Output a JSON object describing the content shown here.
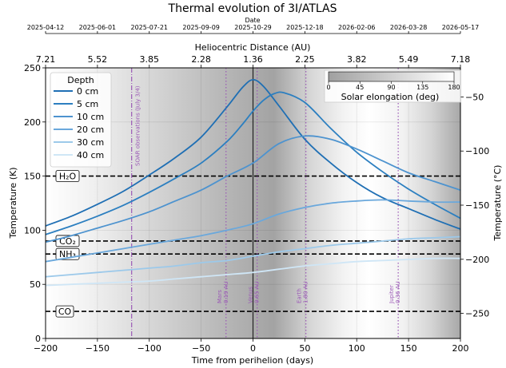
{
  "chart_data": {
    "type": "line",
    "title": "Thermal evolution of 3I/ATLAS",
    "xlabel": "Time from perihelion (days)",
    "ylabel": "Temperature (K)",
    "ylabel_right": "Temperature (°C)",
    "xlim": [
      -200,
      200
    ],
    "ylim": [
      0,
      250
    ],
    "x_ticks": [
      "−200",
      "−150",
      "−100",
      "−50",
      "0",
      "50",
      "100",
      "150",
      "200"
    ],
    "y_ticks": [
      "0",
      "50",
      "100",
      "150",
      "200",
      "250"
    ],
    "y_ticks_right": [
      "−250",
      "−200",
      "−150",
      "−100",
      "−50"
    ],
    "top_date_axis": {
      "label": "Date",
      "ticks": [
        "2025-04-12",
        "2025-06-01",
        "2025-07-21",
        "2025-09-09",
        "2025-10-29",
        "2025-12-18",
        "2026-02-06",
        "2026-03-28",
        "2026-05-17"
      ]
    },
    "top_distance_axis": {
      "label": "Heliocentric Distance (AU)",
      "ticks": [
        "7.21",
        "5.52",
        "3.85",
        "2.28",
        "1.36",
        "2.25",
        "3.82",
        "5.49",
        "7.18"
      ]
    },
    "legend": {
      "title": "Depth",
      "position": "top-left"
    },
    "series": [
      {
        "name": "0 cm",
        "color": "#1f6fb4",
        "x": [
          -200,
          -175,
          -150,
          -125,
          -100,
          -75,
          -50,
          -25,
          -10,
          0,
          10,
          25,
          50,
          75,
          100,
          125,
          150,
          175,
          200
        ],
        "y": [
          104,
          113,
          124,
          136,
          151,
          167,
          186,
          214,
          232,
          239,
          233,
          215,
          184,
          162,
          144,
          130,
          120,
          110,
          101
        ]
      },
      {
        "name": "5 cm",
        "color": "#2c7fc0",
        "x": [
          -200,
          -175,
          -150,
          -125,
          -100,
          -75,
          -50,
          -25,
          -10,
          0,
          10,
          20,
          30,
          50,
          75,
          100,
          125,
          150,
          175,
          200
        ],
        "y": [
          96,
          104,
          113,
          123,
          135,
          148,
          162,
          182,
          198,
          210,
          220,
          226,
          227,
          218,
          194,
          172,
          154,
          138,
          124,
          111
        ]
      },
      {
        "name": "10 cm",
        "color": "#4d93cf",
        "x": [
          -200,
          -175,
          -150,
          -125,
          -100,
          -75,
          -50,
          -25,
          0,
          25,
          50,
          75,
          100,
          125,
          150,
          175,
          200
        ],
        "y": [
          89,
          95,
          102,
          109,
          117,
          127,
          137,
          150,
          162,
          180,
          187,
          184,
          175,
          164,
          153,
          145,
          137
        ]
      },
      {
        "name": "20 cm",
        "color": "#6aa8dc",
        "x": [
          -200,
          -175,
          -150,
          -125,
          -100,
          -75,
          -50,
          -25,
          0,
          25,
          50,
          75,
          100,
          125,
          150,
          175,
          200
        ],
        "y": [
          71,
          75,
          79,
          83,
          87,
          91,
          95,
          100,
          106,
          115,
          121,
          125,
          127,
          128,
          127,
          126,
          126
        ]
      },
      {
        "name": "30 cm",
        "color": "#9cc9ea",
        "x": [
          -200,
          -175,
          -150,
          -125,
          -100,
          -75,
          -50,
          -25,
          0,
          25,
          50,
          75,
          100,
          125,
          150,
          175,
          200
        ],
        "y": [
          57,
          59,
          61,
          63,
          65,
          67,
          70,
          72,
          76,
          80,
          83,
          86,
          88,
          90,
          92,
          93,
          94
        ]
      },
      {
        "name": "40 cm",
        "color": "#cfe6f6",
        "x": [
          -200,
          -175,
          -150,
          -125,
          -100,
          -75,
          -50,
          -25,
          0,
          25,
          50,
          75,
          100,
          125,
          150,
          175,
          200
        ],
        "y": [
          49,
          50,
          51,
          52,
          53,
          55,
          57,
          59,
          61,
          64,
          67,
          69,
          71,
          72,
          73,
          74,
          74
        ]
      }
    ],
    "thresholds": [
      {
        "label": "H₂O",
        "y": 150
      },
      {
        "label": "CO₂",
        "y": 90
      },
      {
        "label": "NH₃",
        "y": 78
      },
      {
        "label": "CO",
        "y": 25
      }
    ],
    "events": [
      {
        "x": -117,
        "label": "SOAR observations (July 3/4)",
        "style": "dashdot"
      },
      {
        "x": -26,
        "label": "Mars",
        "sublabel": "0.19 AU",
        "style": "dotted"
      },
      {
        "x": 4,
        "label": "Venus",
        "sublabel": "0.65 AU",
        "style": "dotted"
      },
      {
        "x": 51,
        "label": "Earth",
        "sublabel": "1.80 AU",
        "style": "dotted"
      },
      {
        "x": 140,
        "label": "Jupiter",
        "sublabel": "0.36 AU",
        "style": "dotted"
      }
    ],
    "perihelion_marker_x": 0,
    "background": "solar elongation shading (grayscale)",
    "elongation_colorbar": {
      "label": "Solar elongation (deg)",
      "ticks": [
        "0",
        "45",
        "90",
        "135",
        "180"
      ],
      "range": [
        0,
        180
      ]
    },
    "grid": true
  }
}
